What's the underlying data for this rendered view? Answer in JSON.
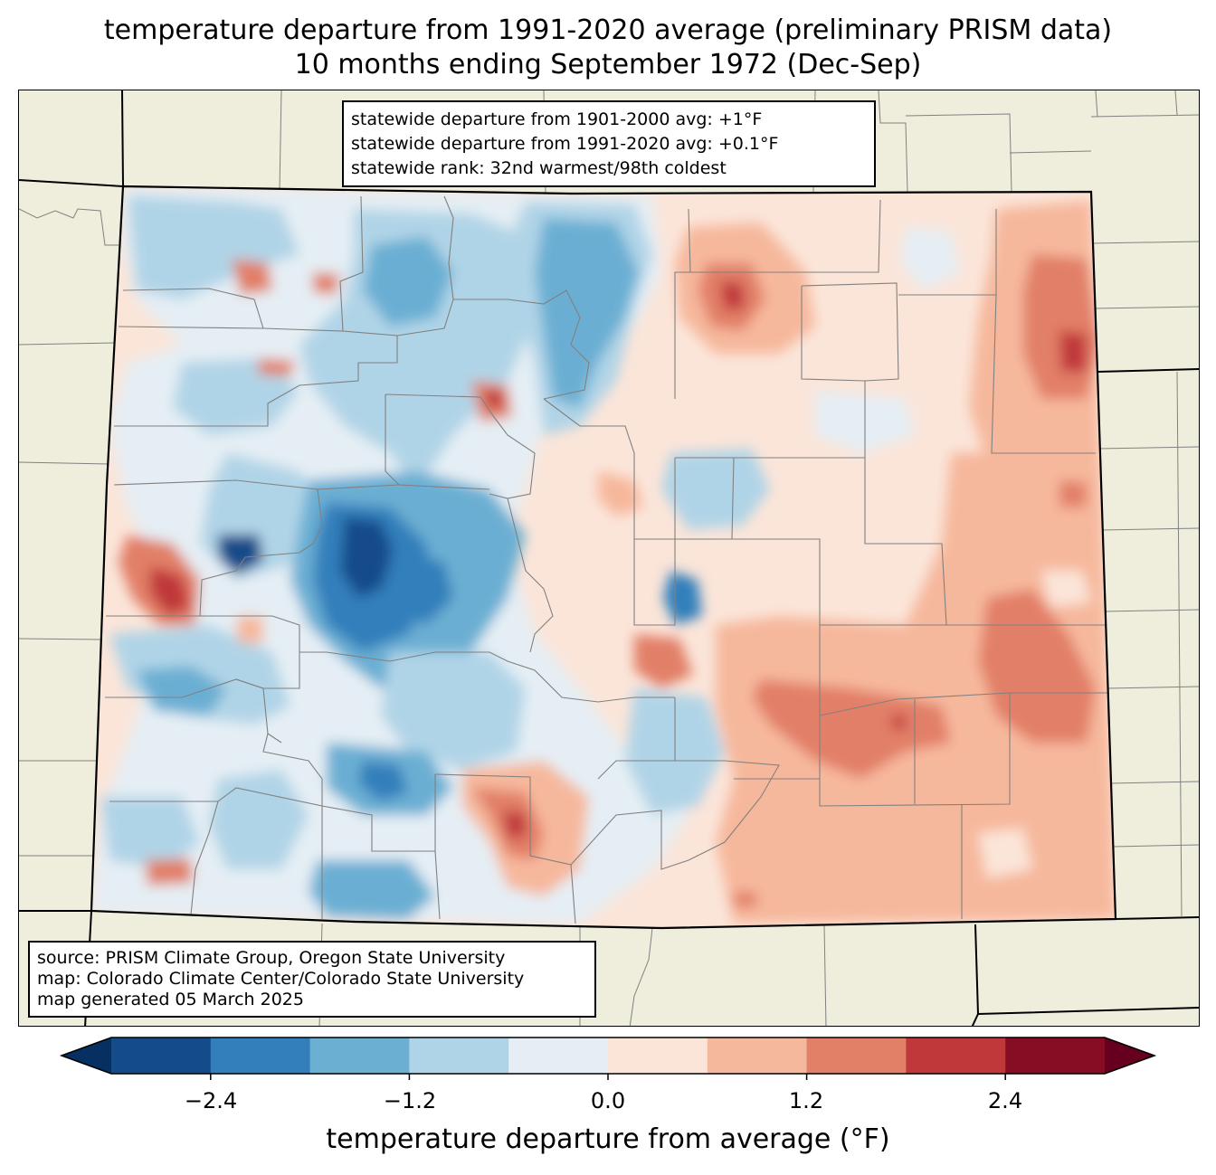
{
  "title": "temperature departure from 1991-2020 average (preliminary PRISM data)",
  "subtitle": "10 months ending September 1972 (Dec-Sep)",
  "stats": [
    "statewide departure from 1901-2000 avg: +1°F",
    "statewide departure from 1991-2020 avg: +0.1°F",
    "statewide rank: 32nd warmest/98th coldest"
  ],
  "source": [
    "source: PRISM Climate Group, Oregon State University",
    "map: Colorado Climate Center/Colorado State University",
    "map generated 05 March 2025"
  ],
  "colorbar": {
    "label": "temperature departure from average (°F)",
    "ticks": [
      "−2.4",
      "−1.2",
      "0.0",
      "1.2",
      "2.4"
    ],
    "tick_values": [
      -2.4,
      -1.2,
      0.0,
      1.2,
      2.4
    ],
    "bounds": [
      -3.0,
      -2.4,
      -1.8,
      -1.2,
      -0.6,
      0.0,
      0.6,
      1.2,
      1.8,
      2.4,
      3.0
    ],
    "colors": [
      "#144c8a",
      "#327fbb",
      "#6bafd3",
      "#b0d4e7",
      "#e5eef4",
      "#fbe5d9",
      "#f6b89c",
      "#e27f67",
      "#c0383a",
      "#860d24"
    ],
    "under_color": "#053061",
    "over_color": "#67001f"
  },
  "map": {
    "background_color": "#efeedc",
    "state_border_color": "#000000",
    "county_border_color": "#808080"
  }
}
